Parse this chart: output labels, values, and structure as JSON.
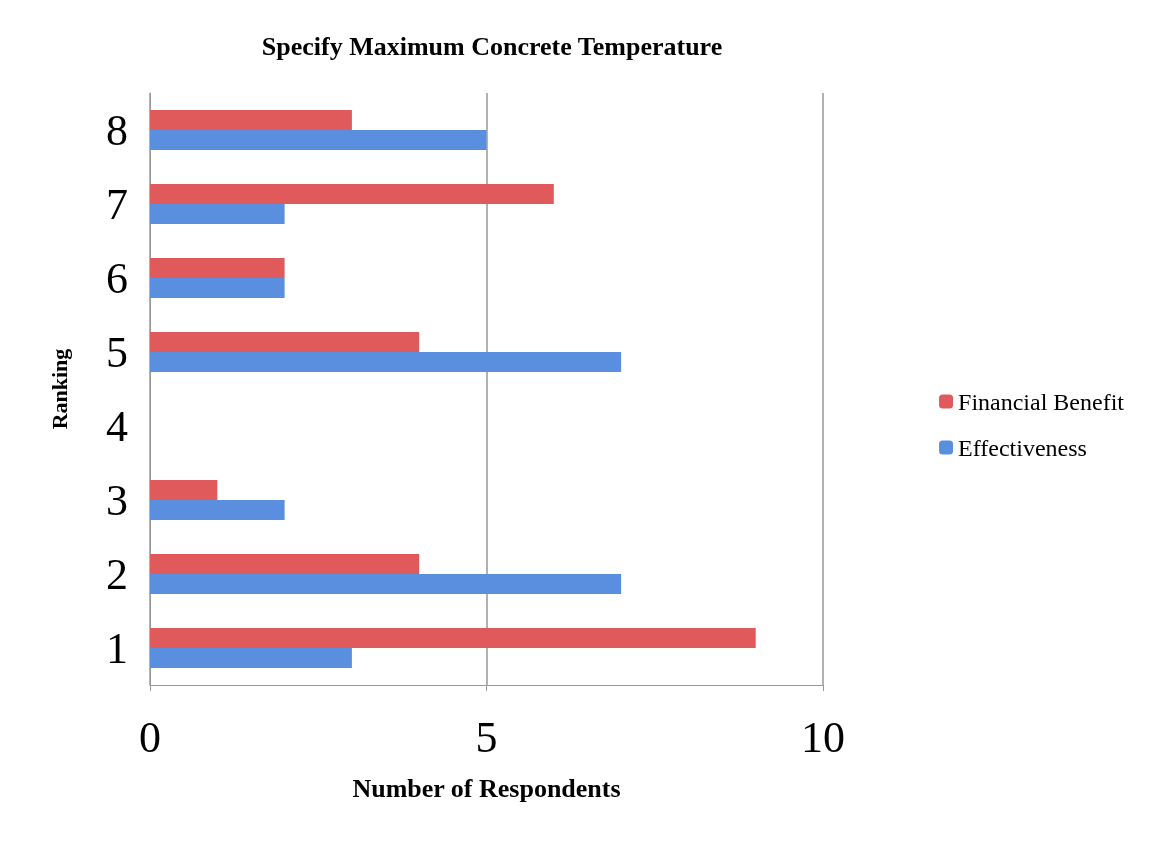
{
  "chart_data": {
    "type": "bar",
    "orientation": "horizontal",
    "title": "Specify Maximum Concrete Temperature",
    "xlabel": "Number of Respondents",
    "ylabel": "Ranking",
    "categories": [
      "8",
      "7",
      "6",
      "5",
      "4",
      "3",
      "2",
      "1"
    ],
    "series": [
      {
        "name": "Financial Benefit",
        "color": "#e05a5c",
        "values": [
          3,
          6,
          2,
          4,
          0,
          1,
          4,
          9
        ]
      },
      {
        "name": "Effectiveness",
        "color": "#5a8fe0",
        "values": [
          5,
          2,
          2,
          7,
          0,
          2,
          7,
          3
        ]
      }
    ],
    "xlim": [
      0,
      10
    ],
    "xticks": [
      0,
      5,
      10
    ],
    "grid": "x",
    "legend": "right"
  }
}
